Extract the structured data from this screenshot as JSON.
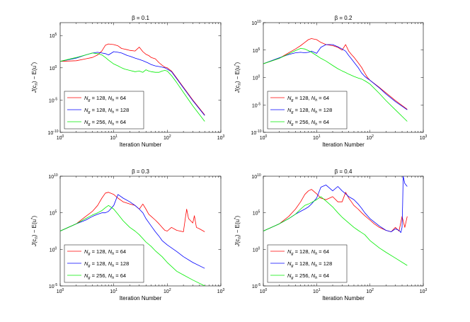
{
  "colors": {
    "s1": "#ff0000",
    "s2": "#0000ff",
    "s3": "#00ee00",
    "axis": "#000000"
  },
  "shared": {
    "xlabel": "Iteration Number",
    "ylabel_j": "J",
    "ylabel_sub": "(c",
    "ylabel_n": "n",
    "ylabel_rest": ") − E(u",
    "ylabel_star": "*",
    "ylabel_close": ")",
    "legend": [
      {
        "a": "N",
        "as": "g",
        "av": " = 128, ",
        "b": "N",
        "bs": "h",
        "bv": " = 64"
      },
      {
        "a": "N",
        "as": "g",
        "av": " = 128, ",
        "b": "N",
        "bs": "h",
        "bv": " = 128"
      },
      {
        "a": "N",
        "as": "g",
        "av": " = 256, ",
        "b": "N",
        "bs": "h",
        "bv": " = 64"
      }
    ],
    "xticks": [
      {
        "base": "10",
        "exp": "0"
      },
      {
        "base": "10",
        "exp": "1"
      },
      {
        "base": "10",
        "exp": "2"
      },
      {
        "base": "10",
        "exp": "3"
      }
    ]
  },
  "chart_data": [
    {
      "type": "line",
      "title": "β = 0.1",
      "xscale": "log",
      "yscale": "log",
      "xlim": [
        1,
        1000
      ],
      "ylim": [
        1e-10,
        10000000.0
      ],
      "legend_loc": "bottom-left",
      "yticks": [
        {
          "base": "10",
          "exp": "-10"
        },
        {
          "base": "10",
          "exp": "-5"
        },
        {
          "base": "10",
          "exp": "0"
        },
        {
          "base": "10",
          "exp": "5"
        }
      ],
      "series": [
        {
          "name": "Ng = 128, Nh = 64",
          "color": "#ff0000",
          "x": [
            1,
            2,
            3,
            4,
            5,
            6,
            7,
            8,
            10,
            12,
            14,
            16,
            18,
            20,
            25,
            30,
            35,
            40,
            45,
            50,
            60,
            70,
            80,
            90,
            100,
            120,
            150,
            200,
            300,
            500
          ],
          "y": [
            1.0,
            1.1,
            1.4,
            1.6,
            2.0,
            2.6,
            3.5,
            3.7,
            3.6,
            3.4,
            3.0,
            2.9,
            2.8,
            2.7,
            2.6,
            3.2,
            2.5,
            2.1,
            1.9,
            1.6,
            1.4,
            0.8,
            0.4,
            0.1,
            0.0,
            -0.5,
            -1.6,
            -3.0,
            -5.0,
            -7.3
          ]
        },
        {
          "name": "Ng = 128, Nh = 128",
          "color": "#0000ff",
          "x": [
            1,
            2,
            3,
            4,
            5,
            6,
            7,
            8,
            10,
            12,
            14,
            16,
            18,
            20,
            25,
            30,
            35,
            40,
            45,
            50,
            60,
            70,
            80,
            90,
            100,
            120,
            150,
            200,
            300,
            500
          ],
          "y": [
            1.0,
            1.5,
            2.0,
            2.3,
            2.4,
            2.3,
            2.2,
            2.0,
            2.5,
            2.4,
            2.3,
            2.1,
            1.9,
            1.8,
            1.5,
            1.3,
            1.1,
            0.9,
            0.7,
            0.5,
            0.3,
            0.2,
            0.1,
            0.0,
            -0.2,
            -0.6,
            -1.7,
            -3.1,
            -5.1,
            -7.4
          ]
        },
        {
          "name": "Ng = 256, Nh = 64",
          "color": "#00ee00",
          "x": [
            1,
            2,
            3,
            4,
            5,
            6,
            7,
            8,
            10,
            12,
            14,
            16,
            18,
            20,
            25,
            30,
            35,
            40,
            45,
            50,
            60,
            70,
            80,
            90,
            100,
            120,
            150,
            200,
            300,
            500
          ],
          "y": [
            1.0,
            1.6,
            2.0,
            2.3,
            2.2,
            2.0,
            1.6,
            1.2,
            0.6,
            0.3,
            0.0,
            -0.2,
            -0.3,
            -0.4,
            -0.6,
            -0.5,
            -0.7,
            -0.3,
            -0.5,
            -0.6,
            -0.7,
            -0.7,
            -0.5,
            -0.4,
            -0.5,
            -1.2,
            -2.3,
            -3.8,
            -5.9,
            -8.3
          ]
        }
      ]
    },
    {
      "type": "line",
      "title": "β = 0.2",
      "xscale": "log",
      "yscale": "log",
      "xlim": [
        1,
        1000
      ],
      "ylim": [
        1e-10,
        10000000000.0
      ],
      "legend_loc": "bottom-left",
      "yticks": [
        {
          "base": "10",
          "exp": "-10"
        },
        {
          "base": "10",
          "exp": "-5"
        },
        {
          "base": "10",
          "exp": "0"
        },
        {
          "base": "10",
          "exp": "5"
        },
        {
          "base": "10",
          "exp": "10"
        }
      ],
      "series": [
        {
          "name": "Ng = 128, Nh = 64",
          "color": "#ff0000",
          "x": [
            1,
            2,
            3,
            4,
            5,
            6,
            7,
            8,
            10,
            12,
            15,
            20,
            25,
            30,
            35,
            40,
            45,
            50,
            60,
            70,
            80,
            90,
            100,
            150,
            200,
            300,
            500
          ],
          "y": [
            2.5,
            3.5,
            4.5,
            5.2,
            5.8,
            6.4,
            6.9,
            7.1,
            6.9,
            6.4,
            6.0,
            5.8,
            5.5,
            5.0,
            6.0,
            4.8,
            4.2,
            3.7,
            2.7,
            1.8,
            0.8,
            0.0,
            -0.5,
            -1.8,
            -2.8,
            -4.2,
            -5.8
          ]
        },
        {
          "name": "Ng = 128, Nh = 128",
          "color": "#0000ff",
          "x": [
            1,
            2,
            3,
            4,
            5,
            6,
            7,
            8,
            10,
            12,
            15,
            20,
            25,
            30,
            35,
            40,
            45,
            50,
            60,
            70,
            80,
            90,
            100,
            150,
            200,
            300,
            500
          ],
          "y": [
            2.5,
            3.6,
            4.2,
            4.5,
            4.6,
            4.5,
            4.6,
            4.8,
            4.4,
            5.5,
            6.0,
            6.0,
            5.6,
            5.2,
            4.8,
            4.0,
            3.4,
            2.8,
            1.8,
            0.8,
            0.2,
            -0.2,
            -0.5,
            -1.9,
            -3.0,
            -4.4,
            -5.9
          ]
        },
        {
          "name": "Ng = 256, Nh = 64",
          "color": "#00ee00",
          "x": [
            1,
            2,
            3,
            4,
            5,
            6,
            7,
            8,
            10,
            12,
            15,
            20,
            25,
            30,
            35,
            40,
            45,
            50,
            60,
            70,
            80,
            90,
            100,
            150,
            200,
            300,
            500
          ],
          "y": [
            2.5,
            3.5,
            4.3,
            4.9,
            5.3,
            5.2,
            4.9,
            4.6,
            4.0,
            3.5,
            3.0,
            2.2,
            1.6,
            1.2,
            0.9,
            0.6,
            0.4,
            0.2,
            -0.1,
            -0.3,
            -0.6,
            -0.9,
            -1.2,
            -2.9,
            -4.2,
            -5.9,
            -8.0
          ]
        }
      ]
    },
    {
      "type": "line",
      "title": "β = 0.3",
      "xscale": "log",
      "yscale": "log",
      "xlim": [
        1,
        1000
      ],
      "ylim": [
        1e-05,
        10000000000.0
      ],
      "legend_loc": "bottom-left",
      "yticks": [
        {
          "base": "10",
          "exp": "-5"
        },
        {
          "base": "10",
          "exp": "0"
        },
        {
          "base": "10",
          "exp": "5"
        },
        {
          "base": "10",
          "exp": "10"
        }
      ],
      "series": [
        {
          "name": "Ng = 128, Nh = 64",
          "color": "#ff0000",
          "x": [
            1,
            2,
            3,
            4,
            5,
            6,
            7,
            8,
            10,
            12,
            15,
            20,
            25,
            30,
            35,
            40,
            45,
            50,
            60,
            70,
            80,
            90,
            100,
            120,
            150,
            200,
            230,
            250,
            300,
            320,
            350,
            400,
            500
          ],
          "y": [
            2.5,
            3.5,
            4.5,
            5.2,
            6.0,
            7.0,
            7.7,
            7.8,
            7.5,
            7.0,
            6.5,
            6.2,
            6.0,
            5.5,
            6.2,
            5.5,
            4.8,
            4.5,
            4.0,
            3.5,
            3.0,
            2.6,
            2.5,
            3.0,
            2.6,
            2.4,
            5.5,
            4.2,
            3.6,
            4.6,
            3.0,
            2.8,
            2.4
          ]
        },
        {
          "name": "Ng = 128, Nh = 128",
          "color": "#0000ff",
          "x": [
            1,
            2,
            3,
            4,
            5,
            6,
            7,
            8,
            10,
            12,
            15,
            20,
            25,
            30,
            35,
            40,
            50,
            60,
            70,
            80,
            100,
            150,
            200,
            300,
            500
          ],
          "y": [
            2.5,
            3.5,
            4.0,
            4.5,
            4.8,
            5.0,
            5.0,
            5.2,
            6.0,
            7.5,
            7.0,
            6.5,
            6.0,
            5.5,
            5.0,
            4.2,
            3.2,
            2.4,
            1.8,
            1.2,
            0.6,
            -0.3,
            -1.0,
            -1.8,
            -2.6
          ]
        },
        {
          "name": "Ng = 256, Nh = 64",
          "color": "#00ee00",
          "x": [
            1,
            2,
            3,
            4,
            5,
            6,
            7,
            8,
            10,
            12,
            15,
            20,
            25,
            30,
            40,
            50,
            60,
            80,
            100,
            150,
            200,
            300,
            500
          ],
          "y": [
            2.5,
            3.5,
            4.2,
            4.7,
            5.0,
            5.3,
            5.7,
            6.0,
            5.5,
            4.8,
            3.9,
            3.0,
            2.5,
            2.0,
            1.0,
            0.4,
            -0.2,
            -1.0,
            -1.8,
            -3.0,
            -3.5,
            -4.2,
            -5.0
          ]
        }
      ]
    },
    {
      "type": "line",
      "title": "β = 0.4",
      "xscale": "log",
      "yscale": "log",
      "xlim": [
        1,
        1000
      ],
      "ylim": [
        1e-05,
        10000000000.0
      ],
      "legend_loc": "bottom-left",
      "yticks": [
        {
          "base": "10",
          "exp": "-5"
        },
        {
          "base": "10",
          "exp": "0"
        },
        {
          "base": "10",
          "exp": "5"
        },
        {
          "base": "10",
          "exp": "10"
        }
      ],
      "series": [
        {
          "name": "Ng = 128, Nh = 64",
          "color": "#ff0000",
          "x": [
            1,
            2,
            3,
            4,
            5,
            6,
            7,
            8,
            10,
            12,
            15,
            20,
            25,
            30,
            35,
            40,
            45,
            50,
            60,
            70,
            80,
            100,
            120,
            150,
            200,
            250,
            300,
            350,
            400,
            450,
            500
          ],
          "y": [
            2.5,
            3.5,
            4.5,
            5.5,
            6.5,
            7.5,
            8.0,
            8.2,
            7.6,
            7.0,
            6.8,
            7.2,
            6.5,
            6.5,
            7.8,
            7.0,
            6.5,
            6.0,
            5.5,
            5.0,
            4.6,
            4.0,
            3.5,
            3.0,
            2.6,
            2.4,
            3.0,
            2.5,
            4.5,
            3.0,
            4.5
          ]
        },
        {
          "name": "Ng = 128, Nh = 128",
          "color": "#0000ff",
          "x": [
            1,
            2,
            3,
            4,
            5,
            6,
            7,
            8,
            10,
            12,
            15,
            20,
            25,
            30,
            35,
            40,
            50,
            60,
            70,
            80,
            100,
            150,
            200,
            250,
            300,
            350,
            380,
            400,
            410,
            420,
            450,
            500
          ],
          "y": [
            2.5,
            3.5,
            4.2,
            4.8,
            5.2,
            5.5,
            5.8,
            6.2,
            7.0,
            8.5,
            8.8,
            8.0,
            8.6,
            8.0,
            7.6,
            7.2,
            6.8,
            6.2,
            5.6,
            5.0,
            4.2,
            3.2,
            2.6,
            2.4,
            2.8,
            2.6,
            2.3,
            3.0,
            6.0,
            10.0,
            9.0,
            8.6
          ]
        },
        {
          "name": "Ng = 256, Nh = 64",
          "color": "#00ee00",
          "x": [
            1,
            2,
            3,
            4,
            5,
            6,
            7,
            8,
            10,
            12,
            15,
            20,
            25,
            30,
            40,
            50,
            60,
            80,
            100,
            150,
            200,
            300,
            500
          ],
          "y": [
            2.5,
            3.5,
            4.2,
            4.8,
            5.5,
            6.0,
            6.2,
            6.4,
            6.8,
            7.2,
            6.6,
            5.8,
            5.0,
            4.4,
            3.6,
            3.0,
            2.6,
            2.0,
            1.2,
            0.2,
            -0.4,
            -1.2,
            -2.2
          ]
        }
      ]
    }
  ]
}
